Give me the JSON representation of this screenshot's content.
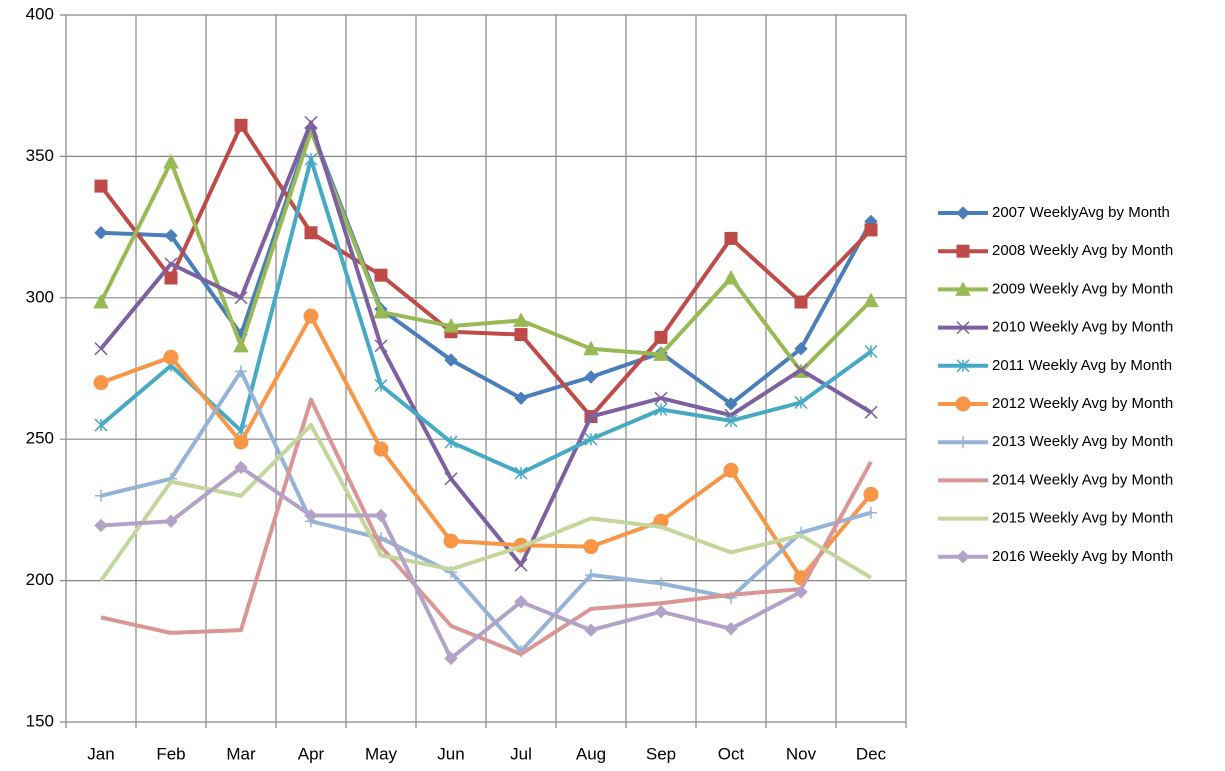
{
  "chart_data": {
    "type": "line",
    "categories": [
      "Jan",
      "Feb",
      "Mar",
      "Apr",
      "May",
      "Jun",
      "Jul",
      "Aug",
      "Sep",
      "Oct",
      "Nov",
      "Dec"
    ],
    "ylim": [
      150,
      400
    ],
    "yticks": [
      150,
      200,
      250,
      300,
      350,
      400
    ],
    "grid": true,
    "legend": "right",
    "series": [
      {
        "name": "2007 WeeklyAvg by Month",
        "color": "#4a7ebb",
        "marker": "diamond",
        "values": [
          323,
          322,
          287,
          360,
          296,
          278,
          264.5,
          272,
          280.5,
          262.5,
          282,
          327
        ]
      },
      {
        "name": "2008 Weekly Avg by Month",
        "color": "#be4b48",
        "marker": "square",
        "values": [
          339.5,
          307,
          361,
          323,
          308,
          288,
          287,
          258,
          286,
          321,
          298.5,
          324
        ]
      },
      {
        "name": "2009 Weekly Avg by Month",
        "color": "#98b954",
        "marker": "triangle",
        "values": [
          298.5,
          348,
          283,
          359,
          295,
          290,
          292,
          282,
          280,
          307,
          274,
          299
        ]
      },
      {
        "name": "2010 Weekly Avg by Month",
        "color": "#7d60a0",
        "marker": "x",
        "values": [
          282,
          312,
          300,
          362,
          283,
          236,
          205.5,
          258,
          264.5,
          258.5,
          274.5,
          259.5
        ]
      },
      {
        "name": "2011 Weekly Avg by Month",
        "color": "#46aac5",
        "marker": "star",
        "values": [
          255,
          276,
          253,
          349,
          269,
          249,
          238,
          250,
          260.5,
          256.5,
          263,
          281
        ]
      },
      {
        "name": "2012 Weekly Avg by Month",
        "color": "#f79646",
        "marker": "circle",
        "values": [
          270,
          279,
          249,
          293.5,
          246.5,
          214,
          212.5,
          212,
          221,
          239,
          201,
          230.5
        ]
      },
      {
        "name": "2013 Weekly Avg by Month",
        "color": "#95b3d7",
        "marker": "plus",
        "values": [
          230,
          236,
          274,
          221,
          215,
          203,
          175,
          202,
          199,
          194,
          217,
          224
        ]
      },
      {
        "name": "2014 Weekly Avg by Month",
        "color": "#d99694",
        "marker": "none",
        "values": [
          187,
          181.5,
          182.5,
          264,
          212,
          184,
          174,
          190,
          192,
          195,
          197,
          242
        ]
      },
      {
        "name": "2015 Weekly Avg by Month",
        "color": "#c3d69b",
        "marker": "none",
        "values": [
          200,
          235,
          230,
          255,
          209,
          204,
          212,
          222,
          219,
          210,
          216,
          201
        ]
      },
      {
        "name": "2016 Weekly Avg by Month",
        "color": "#b3a2c7",
        "marker": "diamond",
        "values": [
          219.5,
          221,
          240,
          223,
          223,
          172.5,
          192.5,
          182.5,
          189,
          183,
          196,
          null
        ]
      }
    ]
  }
}
